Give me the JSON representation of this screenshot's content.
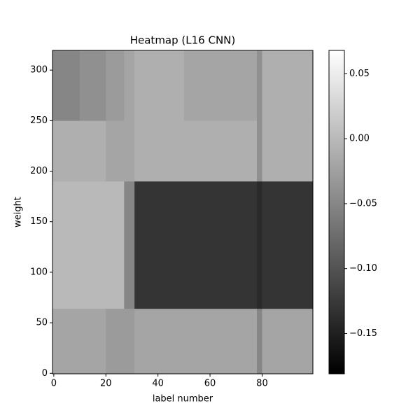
{
  "chart_data": {
    "type": "heatmap",
    "title": "Heatmap (L16 CNN)",
    "x_label": "label number",
    "y_label": "weight",
    "x_edges": [
      -0.5,
      10,
      20,
      27,
      31,
      50,
      78,
      80,
      99.5
    ],
    "y_edges": [
      -0.5,
      64,
      190,
      250,
      319.5
    ],
    "z": [
      [
        -0.02,
        -0.02,
        -0.03,
        -0.03,
        -0.02,
        -0.02,
        -0.05,
        -0.02
      ],
      [
        0.0,
        0.0,
        0.0,
        -0.05,
        -0.13,
        -0.13,
        -0.14,
        -0.13
      ],
      [
        -0.01,
        -0.01,
        -0.02,
        -0.02,
        -0.01,
        -0.01,
        -0.04,
        -0.01
      ],
      [
        -0.05,
        -0.04,
        -0.03,
        -0.02,
        -0.01,
        -0.02,
        -0.04,
        -0.01
      ]
    ],
    "colormap": "gray",
    "xlim": [
      -0.5,
      99.5
    ],
    "xticks": [
      0,
      20,
      40,
      60,
      80
    ],
    "ylim": [
      -0.5,
      319.5
    ],
    "yticks": [
      0,
      50,
      100,
      150,
      200,
      250,
      300
    ],
    "clim": [
      -0.181,
      0.068
    ],
    "cticks": [
      {
        "value": 0.05,
        "label": "0.05"
      },
      {
        "value": 0,
        "label": "0.00"
      },
      {
        "value": -0.05,
        "label": "−0.05"
      },
      {
        "value": -0.1,
        "label": "−0.10"
      },
      {
        "value": -0.15,
        "label": "−0.15"
      }
    ]
  }
}
